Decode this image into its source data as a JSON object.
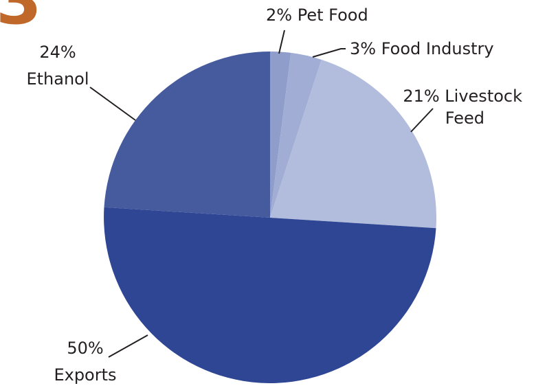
{
  "badge": {
    "text": "3",
    "color": "#c0672a"
  },
  "chart_data": {
    "type": "pie",
    "title": "",
    "slices": [
      {
        "label": "Pet Food",
        "value": 2,
        "percent_text": "2%",
        "color": "#8f9dca"
      },
      {
        "label": "Food Industry",
        "value": 3,
        "percent_text": "3%",
        "color": "#a1add4"
      },
      {
        "label": "Livestock Feed",
        "value": 21,
        "percent_text": "21%",
        "color": "#b2bcdc"
      },
      {
        "label": "Exports",
        "value": 50,
        "percent_text": "50%",
        "color": "#2e4693"
      },
      {
        "label": "Ethanol",
        "value": 24,
        "percent_text": "24%",
        "color": "#455b9e"
      }
    ],
    "labels": {
      "pet_food": "2% Pet Food",
      "food_industry": "3% Food Industry",
      "livestock_line1": "21% Livestock",
      "livestock_line2": "Feed",
      "exports_line1": "50%",
      "exports_line2": "Exports",
      "ethanol_line1": "24%",
      "ethanol_line2": "Ethanol"
    }
  }
}
